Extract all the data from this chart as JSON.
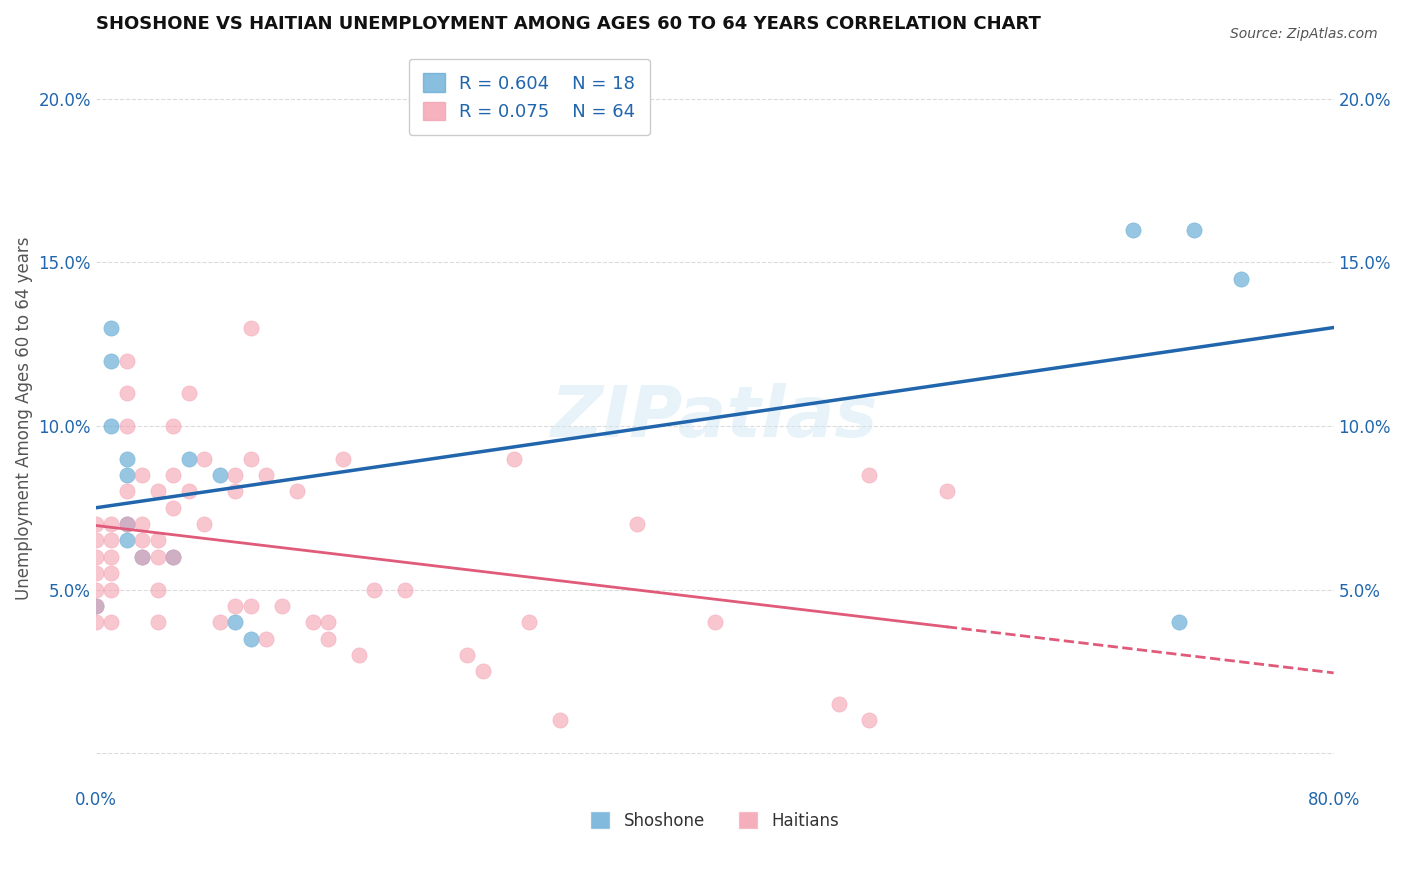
{
  "title": "SHOSHONE VS HAITIAN UNEMPLOYMENT AMONG AGES 60 TO 64 YEARS CORRELATION CHART",
  "source": "Source: ZipAtlas.com",
  "xlabel": "",
  "ylabel": "Unemployment Among Ages 60 to 64 years",
  "xlim": [
    0.0,
    0.8
  ],
  "ylim": [
    -0.01,
    0.215
  ],
  "x_ticks": [
    0.0,
    0.1,
    0.2,
    0.3,
    0.4,
    0.5,
    0.6,
    0.7,
    0.8
  ],
  "x_tick_labels": [
    "0.0%",
    "",
    "",
    "",
    "",
    "",
    "",
    "",
    "80.0%"
  ],
  "y_ticks": [
    0.0,
    0.05,
    0.1,
    0.15,
    0.2
  ],
  "y_tick_labels_left": [
    "",
    "5.0%",
    "10.0%",
    "15.0%",
    "20.0%"
  ],
  "y_tick_labels_right": [
    "",
    "5.0%",
    "10.0%",
    "15.0%",
    "20.0%"
  ],
  "shoshone_color": "#6baed6",
  "haitian_color": "#f4a0b0",
  "trendline_shoshone_color": "#2166ac",
  "trendline_haitian_color": "#e05a7a",
  "legend_R_shoshone": "R = 0.604",
  "legend_N_shoshone": "N = 18",
  "legend_R_haitian": "R = 0.075",
  "legend_N_haitian": "N = 64",
  "shoshone_x": [
    0.0,
    0.01,
    0.01,
    0.01,
    0.02,
    0.02,
    0.02,
    0.02,
    0.03,
    0.05,
    0.06,
    0.08,
    0.09,
    0.1,
    0.67,
    0.7,
    0.71,
    0.74
  ],
  "shoshone_y": [
    0.045,
    0.13,
    0.12,
    0.1,
    0.09,
    0.085,
    0.07,
    0.065,
    0.06,
    0.06,
    0.09,
    0.085,
    0.04,
    0.035,
    0.16,
    0.04,
    0.16,
    0.145
  ],
  "haitian_x": [
    0.0,
    0.0,
    0.0,
    0.0,
    0.0,
    0.0,
    0.0,
    0.01,
    0.01,
    0.01,
    0.01,
    0.01,
    0.01,
    0.02,
    0.02,
    0.02,
    0.02,
    0.02,
    0.03,
    0.03,
    0.03,
    0.03,
    0.04,
    0.04,
    0.04,
    0.04,
    0.04,
    0.05,
    0.05,
    0.05,
    0.05,
    0.06,
    0.06,
    0.07,
    0.07,
    0.08,
    0.09,
    0.09,
    0.09,
    0.1,
    0.1,
    0.1,
    0.11,
    0.11,
    0.12,
    0.13,
    0.14,
    0.15,
    0.15,
    0.16,
    0.17,
    0.18,
    0.2,
    0.24,
    0.25,
    0.27,
    0.28,
    0.3,
    0.35,
    0.4,
    0.48,
    0.5,
    0.5,
    0.55
  ],
  "haitian_y": [
    0.06,
    0.065,
    0.07,
    0.055,
    0.05,
    0.045,
    0.04,
    0.07,
    0.065,
    0.06,
    0.055,
    0.05,
    0.04,
    0.12,
    0.11,
    0.1,
    0.08,
    0.07,
    0.085,
    0.07,
    0.065,
    0.06,
    0.08,
    0.065,
    0.06,
    0.05,
    0.04,
    0.1,
    0.085,
    0.075,
    0.06,
    0.11,
    0.08,
    0.09,
    0.07,
    0.04,
    0.085,
    0.08,
    0.045,
    0.13,
    0.09,
    0.045,
    0.085,
    0.035,
    0.045,
    0.08,
    0.04,
    0.035,
    0.04,
    0.09,
    0.03,
    0.05,
    0.05,
    0.03,
    0.025,
    0.09,
    0.04,
    0.01,
    0.07,
    0.04,
    0.015,
    0.085,
    0.01,
    0.08
  ],
  "watermark": "ZIPatlas",
  "background_color": "#ffffff",
  "grid_color": "#cccccc"
}
